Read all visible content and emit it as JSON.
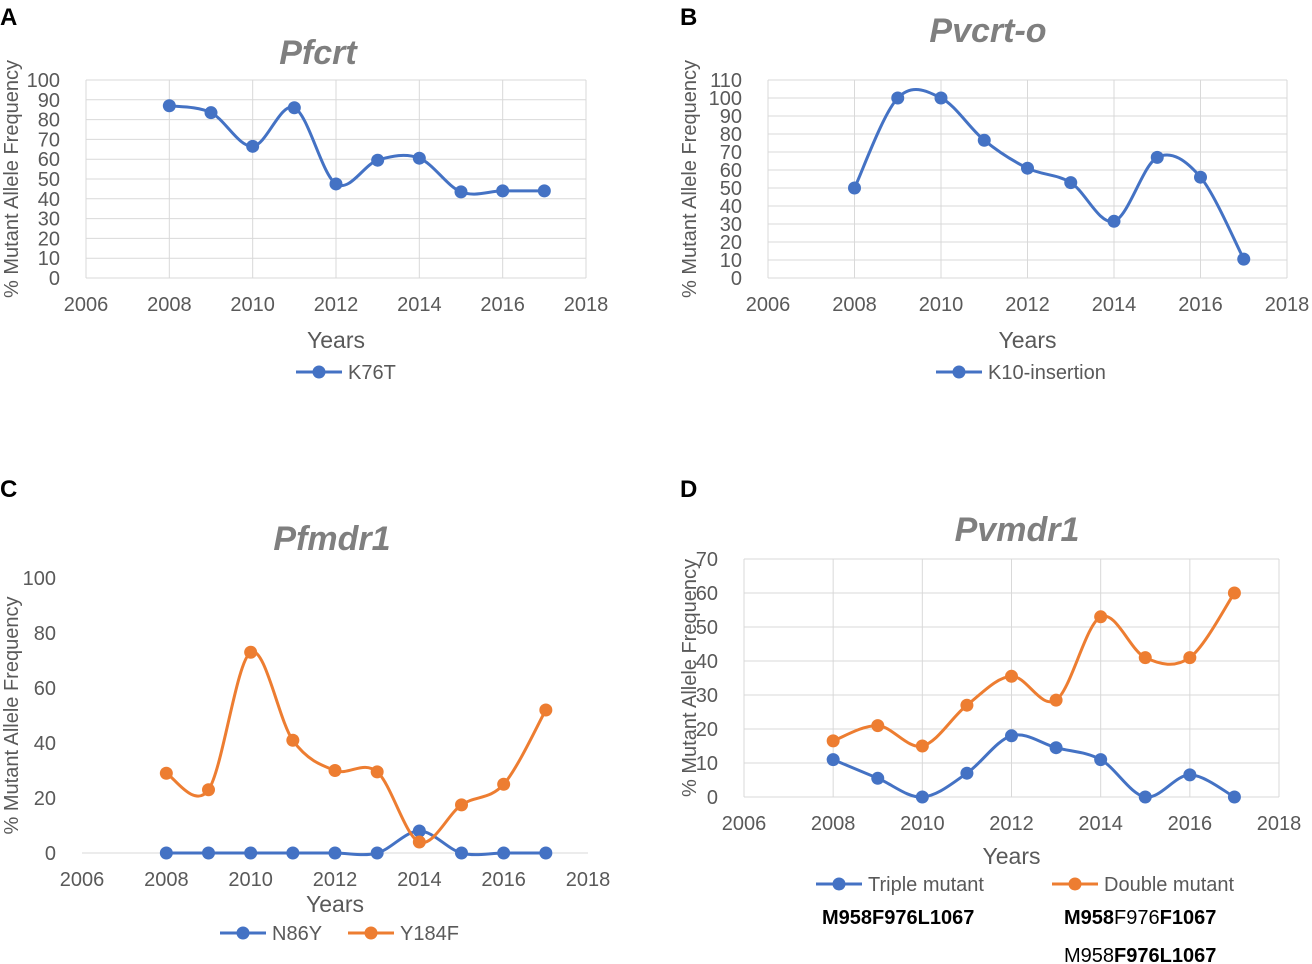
{
  "colors": {
    "blue": "#4472C4",
    "orange": "#ED7D31",
    "title": "#7F7F7F",
    "text": "#595959",
    "grid": "#D9D9D9"
  },
  "chart_data": [
    {
      "panel_letter": "A",
      "type": "line",
      "title": "Pfcrt",
      "xlabel": "Years",
      "ylabel": "% Mutant Allele Frequency",
      "xlim": [
        2006,
        2018
      ],
      "xticks": [
        2006,
        2008,
        2010,
        2012,
        2014,
        2016,
        2018
      ],
      "ylim": [
        0,
        100
      ],
      "yticks": [
        0,
        10,
        20,
        30,
        40,
        50,
        60,
        70,
        80,
        90,
        100
      ],
      "grid": true,
      "legend": "bottom",
      "series": [
        {
          "name": "K76T",
          "color": "#4472C4",
          "x": [
            2008,
            2009,
            2010,
            2011,
            2012,
            2013,
            2014,
            2015,
            2016,
            2017
          ],
          "values": [
            87,
            83.5,
            66.5,
            86,
            47.5,
            59.5,
            60.5,
            43.5,
            44,
            44
          ]
        }
      ]
    },
    {
      "panel_letter": "B",
      "type": "line",
      "title": "Pvcrt-o",
      "xlabel": "Years",
      "ylabel": "% Mutant Allele Frequency",
      "xlim": [
        2006,
        2018
      ],
      "xticks": [
        2006,
        2008,
        2010,
        2012,
        2014,
        2016,
        2018
      ],
      "ylim": [
        0,
        110
      ],
      "yticks": [
        0,
        10,
        20,
        30,
        40,
        50,
        60,
        70,
        80,
        90,
        100,
        110
      ],
      "grid": true,
      "legend": "bottom",
      "series": [
        {
          "name": "K10-insertion",
          "color": "#4472C4",
          "x": [
            2008,
            2009,
            2010,
            2011,
            2012,
            2013,
            2014,
            2015,
            2016,
            2017
          ],
          "values": [
            50,
            100,
            100,
            76.5,
            61,
            53,
            31.5,
            67,
            56,
            10.5
          ]
        }
      ]
    },
    {
      "panel_letter": "C",
      "type": "line",
      "title": "Pfmdr1",
      "xlabel": "Years",
      "ylabel": "% Mutant Allele Frequency",
      "xlim": [
        2006,
        2018
      ],
      "xticks": [
        2006,
        2008,
        2010,
        2012,
        2014,
        2016,
        2018
      ],
      "ylim": [
        0,
        100
      ],
      "yticks": [
        0,
        20,
        40,
        60,
        80,
        100
      ],
      "grid": false,
      "legend": "bottom",
      "series": [
        {
          "name": "N86Y",
          "color": "#4472C4",
          "x": [
            2008,
            2009,
            2010,
            2011,
            2012,
            2013,
            2014,
            2015,
            2016,
            2017
          ],
          "values": [
            0,
            0,
            0,
            0,
            0,
            0,
            8,
            0,
            0,
            0
          ]
        },
        {
          "name": "Y184F",
          "color": "#ED7D31",
          "x": [
            2008,
            2009,
            2010,
            2011,
            2012,
            2013,
            2014,
            2015,
            2016,
            2017
          ],
          "values": [
            29,
            23,
            73,
            41,
            30,
            29.5,
            4,
            17.5,
            25,
            52
          ]
        }
      ]
    },
    {
      "panel_letter": "D",
      "type": "line",
      "title": "Pvmdr1",
      "xlabel": "Years",
      "ylabel": "% Mutant Allele Frequency",
      "xlim": [
        2006,
        2018
      ],
      "xticks": [
        2006,
        2008,
        2010,
        2012,
        2014,
        2016,
        2018
      ],
      "ylim": [
        0,
        70
      ],
      "yticks": [
        0,
        10,
        20,
        30,
        40,
        50,
        60,
        70
      ],
      "grid": true,
      "legend": "bottom",
      "series": [
        {
          "name": "Triple mutant",
          "color": "#4472C4",
          "x": [
            2008,
            2009,
            2010,
            2011,
            2012,
            2013,
            2014,
            2015,
            2016,
            2017
          ],
          "values": [
            11,
            5.5,
            0,
            7,
            18,
            14.5,
            11,
            0,
            6.5,
            0
          ]
        },
        {
          "name": "Double mutant",
          "color": "#ED7D31",
          "x": [
            2008,
            2009,
            2010,
            2011,
            2012,
            2013,
            2014,
            2015,
            2016,
            2017
          ],
          "values": [
            16.5,
            21,
            15,
            27,
            35.5,
            28.5,
            53,
            41,
            41,
            60
          ]
        }
      ],
      "annotations": {
        "triple": [
          {
            "text": "M958F976L1067",
            "bold": true
          }
        ],
        "double_line1": [
          {
            "text": "M958",
            "bold": true
          },
          {
            "text": "F976",
            "bold": false
          },
          {
            "text": "F1067",
            "bold": true
          }
        ],
        "double_line2": [
          {
            "text": "M958",
            "bold": false
          },
          {
            "text": "F976L1067",
            "bold": true
          }
        ]
      }
    }
  ]
}
